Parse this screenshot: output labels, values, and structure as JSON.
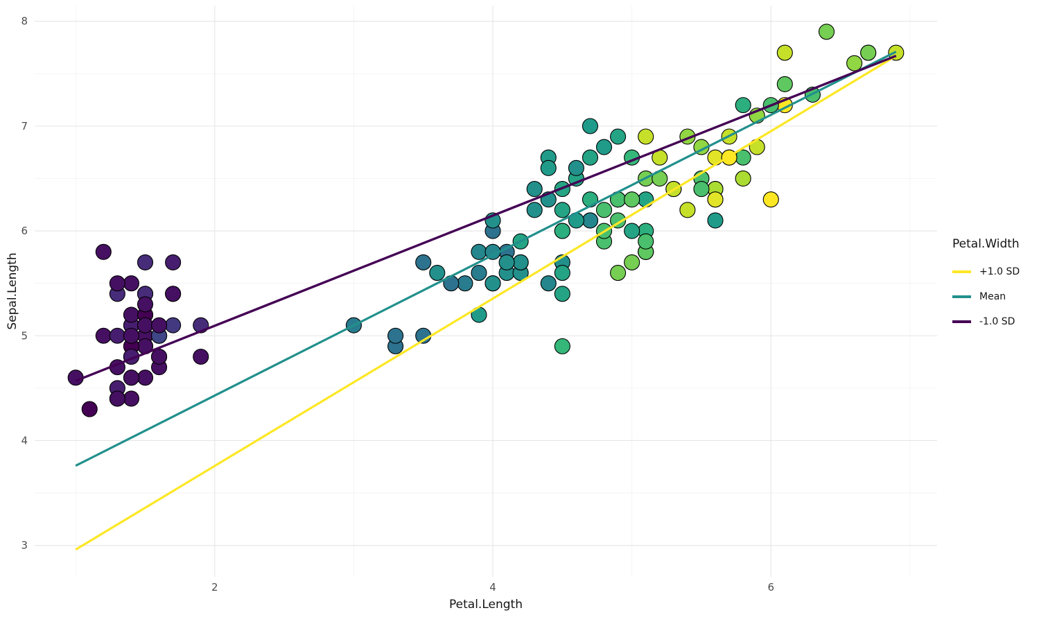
{
  "chart": {
    "xlabel": "Petal.Length",
    "ylabel": "Sepal.Length",
    "legend": {
      "title": "Petal.Width",
      "entries": [
        {
          "label": "+1.0 SD",
          "color": "#FDE725"
        },
        {
          "label": "Mean",
          "color": "#21908C"
        },
        {
          "label": "-1.0 SD",
          "color": "#440154"
        }
      ]
    }
  },
  "chart_data": {
    "type": "scatter",
    "title": "",
    "xlabel": "Petal.Length",
    "ylabel": "Sepal.Length",
    "xlim": [
      0.705,
      7.195
    ],
    "ylim": [
      2.7,
      8.15
    ],
    "xticks": [
      2,
      4,
      6
    ],
    "yticks": [
      3,
      4,
      5,
      6,
      7,
      8
    ],
    "xminor": [
      1,
      3,
      5,
      7
    ],
    "yminor": [
      3.5,
      4.5,
      5.5,
      6.5,
      7.5
    ],
    "grid": true,
    "legend_position": "right",
    "grid_color_major": "#E5E5E5",
    "grid_color_minor": "#F2F2F2",
    "point_style": {
      "radius": 11,
      "stroke": "#000000",
      "stroke_width": 1.1
    },
    "color_scale": {
      "palette": "viridis",
      "variable": "Petal.Width",
      "domain": [
        0.1,
        2.5
      ]
    },
    "lines": [
      {
        "name": "+1.0 SD",
        "color": "#FDE725",
        "x": [
          1.0,
          6.9
        ],
        "y": [
          2.96,
          7.67
        ],
        "width": 3.2
      },
      {
        "name": "Mean",
        "color": "#21908C",
        "x": [
          1.0,
          6.9
        ],
        "y": [
          3.76,
          7.71
        ],
        "width": 3.2
      },
      {
        "name": "-1.0 SD",
        "color": "#440154",
        "x": [
          1.0,
          6.9
        ],
        "y": [
          4.57,
          7.67
        ],
        "width": 3.4
      }
    ],
    "points_format": [
      "Petal.Length",
      "Sepal.Length",
      "Petal.Width"
    ],
    "points": [
      [
        1.4,
        5.1,
        0.2
      ],
      [
        1.4,
        4.9,
        0.2
      ],
      [
        1.3,
        4.7,
        0.2
      ],
      [
        1.5,
        4.6,
        0.2
      ],
      [
        1.4,
        5.0,
        0.2
      ],
      [
        1.7,
        5.4,
        0.4
      ],
      [
        1.4,
        4.6,
        0.3
      ],
      [
        1.5,
        5.0,
        0.2
      ],
      [
        1.4,
        4.4,
        0.2
      ],
      [
        1.5,
        4.9,
        0.1
      ],
      [
        1.5,
        5.4,
        0.2
      ],
      [
        1.6,
        4.8,
        0.2
      ],
      [
        1.4,
        4.8,
        0.1
      ],
      [
        1.1,
        4.3,
        0.1
      ],
      [
        1.2,
        5.8,
        0.2
      ],
      [
        1.5,
        5.7,
        0.4
      ],
      [
        1.3,
        5.4,
        0.4
      ],
      [
        1.4,
        5.1,
        0.3
      ],
      [
        1.7,
        5.7,
        0.3
      ],
      [
        1.5,
        5.1,
        0.3
      ],
      [
        1.7,
        5.4,
        0.2
      ],
      [
        1.5,
        5.1,
        0.4
      ],
      [
        1.0,
        4.6,
        0.2
      ],
      [
        1.7,
        5.1,
        0.5
      ],
      [
        1.9,
        4.8,
        0.2
      ],
      [
        1.6,
        5.0,
        0.2
      ],
      [
        1.6,
        5.0,
        0.4
      ],
      [
        1.5,
        5.2,
        0.2
      ],
      [
        1.4,
        5.2,
        0.2
      ],
      [
        1.6,
        4.7,
        0.2
      ],
      [
        1.6,
        4.8,
        0.2
      ],
      [
        1.5,
        5.4,
        0.4
      ],
      [
        1.5,
        5.2,
        0.1
      ],
      [
        1.4,
        5.5,
        0.2
      ],
      [
        1.5,
        4.9,
        0.2
      ],
      [
        1.2,
        5.0,
        0.2
      ],
      [
        1.3,
        5.5,
        0.2
      ],
      [
        1.4,
        4.9,
        0.1
      ],
      [
        1.3,
        4.4,
        0.2
      ],
      [
        1.5,
        5.1,
        0.2
      ],
      [
        1.3,
        5.0,
        0.3
      ],
      [
        1.3,
        4.5,
        0.3
      ],
      [
        1.3,
        4.4,
        0.2
      ],
      [
        1.6,
        5.0,
        0.6
      ],
      [
        1.9,
        5.1,
        0.4
      ],
      [
        1.4,
        4.8,
        0.3
      ],
      [
        1.6,
        5.1,
        0.2
      ],
      [
        1.4,
        4.6,
        0.2
      ],
      [
        1.5,
        5.3,
        0.2
      ],
      [
        1.4,
        5.0,
        0.2
      ],
      [
        4.7,
        7.0,
        1.4
      ],
      [
        4.5,
        6.4,
        1.5
      ],
      [
        4.9,
        6.9,
        1.5
      ],
      [
        4.0,
        5.5,
        1.3
      ],
      [
        4.6,
        6.5,
        1.5
      ],
      [
        4.5,
        5.7,
        1.3
      ],
      [
        4.7,
        6.3,
        1.6
      ],
      [
        3.3,
        4.9,
        1.0
      ],
      [
        4.6,
        6.6,
        1.3
      ],
      [
        3.9,
        5.2,
        1.4
      ],
      [
        3.5,
        5.0,
        1.0
      ],
      [
        4.2,
        5.9,
        1.5
      ],
      [
        4.0,
        6.0,
        1.0
      ],
      [
        4.7,
        6.1,
        1.4
      ],
      [
        3.6,
        5.6,
        1.3
      ],
      [
        4.4,
        6.7,
        1.4
      ],
      [
        4.5,
        5.6,
        1.5
      ],
      [
        4.1,
        5.8,
        1.0
      ],
      [
        4.5,
        6.2,
        1.5
      ],
      [
        3.9,
        5.6,
        1.1
      ],
      [
        4.8,
        5.9,
        1.8
      ],
      [
        4.0,
        6.1,
        1.3
      ],
      [
        4.9,
        6.3,
        1.5
      ],
      [
        4.7,
        6.1,
        1.2
      ],
      [
        4.3,
        6.4,
        1.3
      ],
      [
        4.4,
        6.6,
        1.4
      ],
      [
        4.8,
        6.8,
        1.4
      ],
      [
        5.0,
        6.7,
        1.7
      ],
      [
        4.5,
        6.0,
        1.5
      ],
      [
        3.5,
        5.7,
        1.0
      ],
      [
        3.8,
        5.5,
        1.1
      ],
      [
        3.7,
        5.5,
        1.0
      ],
      [
        3.9,
        5.8,
        1.2
      ],
      [
        5.1,
        6.0,
        1.6
      ],
      [
        4.5,
        5.4,
        1.5
      ],
      [
        4.5,
        6.0,
        1.6
      ],
      [
        4.7,
        6.7,
        1.5
      ],
      [
        4.4,
        6.3,
        1.3
      ],
      [
        4.1,
        5.6,
        1.3
      ],
      [
        4.0,
        5.5,
        1.3
      ],
      [
        4.4,
        5.5,
        1.2
      ],
      [
        4.6,
        6.1,
        1.4
      ],
      [
        4.0,
        5.8,
        1.2
      ],
      [
        3.3,
        5.0,
        1.0
      ],
      [
        4.2,
        5.6,
        1.3
      ],
      [
        4.2,
        5.7,
        1.2
      ],
      [
        4.2,
        5.7,
        1.3
      ],
      [
        4.3,
        6.2,
        1.3
      ],
      [
        3.0,
        5.1,
        1.1
      ],
      [
        4.1,
        5.7,
        1.3
      ],
      [
        6.0,
        6.3,
        2.5
      ],
      [
        5.1,
        5.8,
        1.9
      ],
      [
        5.9,
        7.1,
        2.1
      ],
      [
        5.6,
        6.3,
        1.8
      ],
      [
        5.8,
        6.5,
        2.2
      ],
      [
        6.6,
        7.6,
        2.1
      ],
      [
        4.5,
        4.9,
        1.7
      ],
      [
        6.3,
        7.3,
        1.8
      ],
      [
        5.8,
        6.7,
        1.8
      ],
      [
        6.1,
        7.2,
        2.5
      ],
      [
        5.1,
        6.5,
        2.0
      ],
      [
        5.3,
        6.4,
        1.9
      ],
      [
        5.5,
        6.8,
        2.1
      ],
      [
        5.0,
        5.7,
        2.0
      ],
      [
        5.1,
        5.8,
        2.4
      ],
      [
        5.3,
        6.4,
        2.3
      ],
      [
        5.5,
        6.5,
        1.8
      ],
      [
        6.7,
        7.7,
        2.2
      ],
      [
        6.9,
        7.7,
        2.3
      ],
      [
        5.0,
        6.0,
        1.5
      ],
      [
        5.7,
        6.9,
        2.3
      ],
      [
        4.9,
        5.6,
        2.0
      ],
      [
        6.7,
        7.7,
        2.0
      ],
      [
        4.9,
        6.3,
        1.8
      ],
      [
        5.7,
        6.7,
        2.1
      ],
      [
        6.0,
        7.2,
        1.8
      ],
      [
        4.8,
        6.2,
        1.8
      ],
      [
        4.9,
        6.1,
        1.8
      ],
      [
        5.6,
        6.4,
        2.1
      ],
      [
        5.8,
        7.2,
        1.6
      ],
      [
        6.1,
        7.4,
        1.9
      ],
      [
        6.4,
        7.9,
        2.0
      ],
      [
        5.6,
        6.4,
        2.2
      ],
      [
        5.1,
        6.3,
        1.5
      ],
      [
        5.6,
        6.1,
        1.4
      ],
      [
        6.1,
        7.7,
        2.3
      ],
      [
        5.6,
        6.3,
        2.4
      ],
      [
        5.5,
        6.4,
        1.8
      ],
      [
        4.8,
        6.0,
        1.8
      ],
      [
        5.4,
        6.9,
        2.1
      ],
      [
        5.6,
        6.7,
        2.4
      ],
      [
        5.1,
        6.9,
        2.3
      ],
      [
        5.1,
        5.8,
        1.9
      ],
      [
        5.9,
        6.8,
        2.3
      ],
      [
        5.7,
        6.7,
        2.5
      ],
      [
        5.2,
        6.7,
        2.3
      ],
      [
        5.0,
        6.3,
        1.9
      ],
      [
        5.2,
        6.5,
        2.0
      ],
      [
        5.4,
        6.2,
        2.3
      ],
      [
        5.1,
        5.9,
        1.8
      ]
    ]
  }
}
